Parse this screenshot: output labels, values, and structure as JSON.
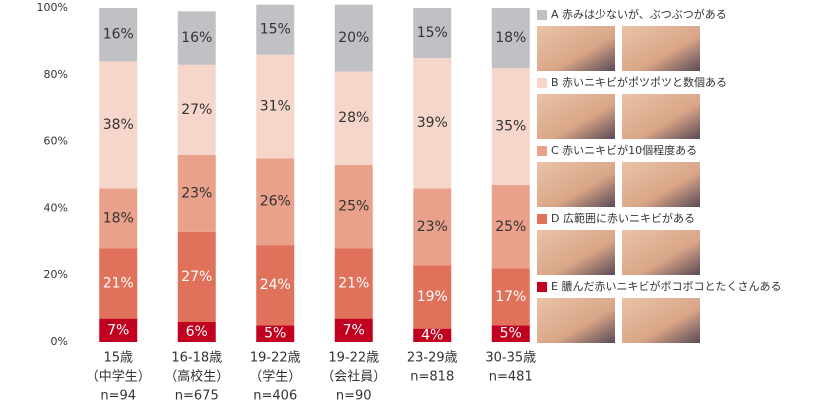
{
  "chart_data": {
    "type": "stacked-bar",
    "categories": [
      [
        "15歳",
        "（中学生）",
        "n=94"
      ],
      [
        "16-18歳",
        "（高校生）",
        "n=675"
      ],
      [
        "19-22歳",
        "（学生）",
        "n=406"
      ],
      [
        "19-22歳",
        "（会社員）",
        "n=90"
      ],
      [
        "23-29歳",
        "n=818"
      ],
      [
        "30-35歳",
        "n=481"
      ]
    ],
    "series": [
      {
        "name": "E 膿んだ赤いニキビがボコボコとたくさんある",
        "color": "#c1001f",
        "text_color": "#ffffff",
        "values": [
          7,
          6,
          5,
          7,
          4,
          5
        ],
        "value_labels": [
          "7%",
          "6%",
          "5%",
          "7%",
          "4%",
          "5%"
        ]
      },
      {
        "name": "D 広範囲に赤いニキビがある",
        "color": "#e0715a",
        "text_color": "#ffffff",
        "values": [
          21,
          27,
          24,
          21,
          19,
          17
        ],
        "value_labels": [
          "21%",
          "27%",
          "24%",
          "21%",
          "19%",
          "17%"
        ]
      },
      {
        "name": "C 赤いニキビが10個程度ある",
        "color": "#e9a18c",
        "text_color": "#333333",
        "values": [
          18,
          23,
          26,
          25,
          23,
          25
        ],
        "value_labels": [
          "18%",
          "23%",
          "26%",
          "25%",
          "23%",
          "25%"
        ]
      },
      {
        "name": "B 赤いニキビがポツポツと数個ある",
        "color": "#f6d6ca",
        "text_color": "#333333",
        "values": [
          38,
          27,
          31,
          28,
          39,
          35
        ],
        "value_labels": [
          "38%",
          "27%",
          "31%",
          "28%",
          "39%",
          "35%"
        ]
      },
      {
        "name": "A 赤みは少ないが、ぶつぶつがある",
        "color": "#bfc1c5",
        "text_color": "#333333",
        "values": [
          16,
          16,
          15,
          20,
          15,
          18
        ],
        "value_labels": [
          "16%",
          "16%",
          "15%",
          "20%",
          "15%",
          "18%"
        ]
      }
    ],
    "ylim": [
      0,
      100
    ],
    "yticks": [
      {
        "value": 0,
        "label": "0%"
      },
      {
        "value": 20,
        "label": "20%"
      },
      {
        "value": 40,
        "label": "40%"
      },
      {
        "value": 60,
        "label": "60%"
      },
      {
        "value": 80,
        "label": "80%"
      },
      {
        "value": 100,
        "label": "100%"
      }
    ]
  }
}
